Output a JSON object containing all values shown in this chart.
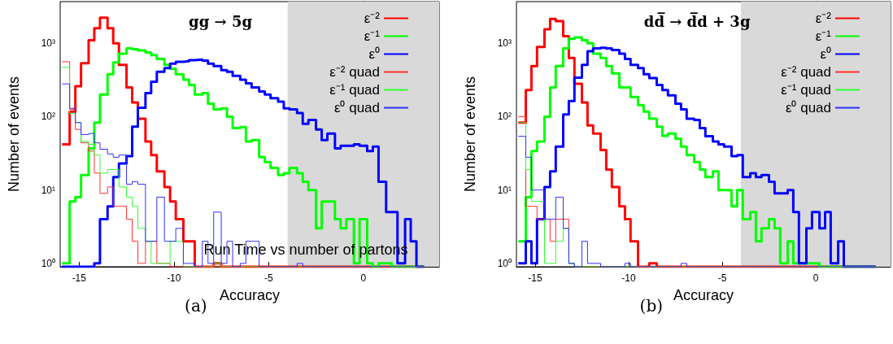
{
  "chart_data": [
    {
      "type": "histogram",
      "title": "gg → 5g",
      "xlabel": "Accuracy",
      "ylabel": "Number of events",
      "log": "y",
      "legend": "top right",
      "xlim": [
        -16,
        4
      ],
      "xticks": [
        -15,
        -10,
        -5,
        0
      ],
      "ylim": [
        0.9,
        3700
      ],
      "yticks": [
        {
          "value": 1,
          "label": "10⁰"
        },
        {
          "value": 10,
          "label": "10¹"
        },
        {
          "value": 100,
          "label": "10²"
        },
        {
          "value": 1000,
          "label": "10³"
        }
      ],
      "bands": [
        {
          "axis": "x",
          "from": -4,
          "to": 4,
          "color": "#d9d9d9"
        }
      ],
      "annotations": [
        "Run Time vs number of partons",
        "(a)"
      ],
      "bins": [
        -15.9,
        -15.5,
        -15.2,
        -14.9,
        -14.5,
        -14.2,
        -13.9,
        -13.5,
        -13.2,
        -12.9,
        -12.5,
        -12.2,
        -11.9,
        -11.5,
        -11.2,
        -10.9,
        -10.5,
        -10.2,
        -9.9,
        -9.5,
        -9.2,
        -8.9,
        -8.5,
        -8.2,
        -7.9,
        -7.5,
        -7.2,
        -6.9,
        -6.5,
        -6.2,
        -5.9,
        -5.5,
        -5.2,
        -4.9,
        -4.5,
        -4.2,
        -3.9,
        -3.5,
        -3.2,
        -2.9,
        -2.5,
        -2.2,
        -1.9,
        -1.5,
        -1.2,
        -0.9,
        -0.5,
        -0.2,
        0.2,
        0.5,
        0.8,
        1.2,
        1.5,
        1.8,
        2.2,
        2.5,
        2.8,
        3.2
      ],
      "series": [
        {
          "name": "ε⁻²",
          "color": "#ff0000",
          "values": [
            42,
            117,
            260,
            535,
            1100,
            1600,
            2240,
            1600,
            1000,
            510,
            250,
            156,
            94,
            46,
            30,
            18,
            11,
            7,
            4,
            2,
            2,
            null,
            null,
            null,
            1,
            null,
            null,
            null,
            null,
            null,
            null,
            null,
            null,
            null,
            null,
            null,
            null,
            null,
            null,
            null,
            null,
            null,
            null,
            null,
            null,
            null,
            null,
            null,
            null,
            null,
            null,
            null,
            null,
            null,
            null,
            null,
            null
          ]
        },
        {
          "name": "ε⁻¹",
          "color": "#00ff00",
          "values": [
            1,
            7,
            8,
            16,
            37,
            83,
            200,
            380,
            550,
            720,
            850,
            830,
            800,
            750,
            690,
            610,
            510,
            450,
            380,
            320,
            270,
            200,
            210,
            150,
            126,
            130,
            100,
            70,
            72,
            46,
            48,
            28,
            24,
            20,
            16,
            17,
            20,
            17,
            13,
            10,
            3,
            7,
            7,
            4,
            3,
            4,
            1,
            4,
            1,
            null,
            1,
            1,
            null,
            null,
            null,
            null,
            null
          ]
        },
        {
          "name": "ε⁰",
          "color": "#0000ff",
          "values": [
            null,
            null,
            null,
            null,
            null,
            1,
            4,
            6,
            15,
            23,
            29,
            73,
            132,
            210,
            300,
            410,
            460,
            530,
            560,
            570,
            590,
            600,
            580,
            530,
            490,
            430,
            410,
            360,
            320,
            285,
            250,
            220,
            200,
            178,
            160,
            130,
            126,
            112,
            80,
            90,
            67,
            48,
            59,
            37,
            40,
            40,
            42,
            40,
            34,
            39,
            13,
            5,
            5,
            1,
            4,
            2,
            null
          ]
        },
        {
          "name": "ε⁻² quad",
          "color": "#ff3030",
          "values": [
            560,
            126,
            67,
            44,
            34,
            17,
            9,
            11,
            6,
            6,
            4,
            2,
            1,
            2,
            2,
            1,
            1,
            null,
            null,
            null,
            null,
            null,
            null,
            null,
            null,
            null,
            null,
            null,
            null,
            null,
            null,
            null,
            null,
            null,
            null,
            null,
            null,
            null,
            null,
            null,
            null,
            null,
            null,
            null,
            null,
            null,
            null,
            null,
            null,
            null,
            null,
            null,
            null,
            null,
            null,
            null,
            null
          ]
        },
        {
          "name": "ε⁻¹ quad",
          "color": "#30ff30",
          "values": [
            470,
            111,
            83,
            46,
            42,
            30,
            17,
            19,
            19,
            11,
            8,
            6,
            3,
            2,
            1,
            1,
            1,
            2,
            2,
            null,
            null,
            null,
            null,
            null,
            1,
            null,
            null,
            null,
            null,
            null,
            null,
            null,
            null,
            null,
            null,
            null,
            null,
            null,
            null,
            null,
            null,
            null,
            null,
            null,
            null,
            null,
            null,
            null,
            null,
            null,
            null,
            null,
            null,
            null,
            null,
            null,
            null
          ]
        },
        {
          "name": "ε⁰ quad",
          "color": "#3030ff",
          "values": [
            280,
            130,
            83,
            57,
            59,
            44,
            36,
            31,
            28,
            30,
            12,
            13,
            12,
            2,
            2,
            8,
            2,
            2,
            3,
            1,
            1,
            null,
            2,
            1,
            5,
            1,
            2,
            null,
            1,
            2,
            2,
            null,
            null,
            null,
            null,
            null,
            null,
            1,
            null,
            null,
            null,
            null,
            null,
            null,
            null,
            null,
            null,
            null,
            null,
            null,
            null,
            null,
            null,
            null,
            null,
            null,
            null
          ]
        }
      ]
    },
    {
      "type": "histogram",
      "title": "dd̅ → d̅d + 3g",
      "xlabel": "Accuracy",
      "ylabel": "Number of events",
      "log": "y",
      "legend": "top right",
      "xlim": [
        -16,
        4
      ],
      "xticks": [
        -15,
        -10,
        -5,
        0
      ],
      "ylim": [
        0.9,
        3700
      ],
      "yticks": [
        {
          "value": 1,
          "label": "10⁰"
        },
        {
          "value": 10,
          "label": "10¹"
        },
        {
          "value": 100,
          "label": "10²"
        },
        {
          "value": 1000,
          "label": "10³"
        }
      ],
      "bands": [
        {
          "axis": "x",
          "from": -4,
          "to": 4,
          "color": "#d9d9d9"
        }
      ],
      "annotations": [
        "(b)"
      ],
      "bins": [
        -15.9,
        -15.5,
        -15.2,
        -14.9,
        -14.5,
        -14.2,
        -13.9,
        -13.5,
        -13.2,
        -12.9,
        -12.5,
        -12.2,
        -11.9,
        -11.5,
        -11.2,
        -10.9,
        -10.5,
        -10.2,
        -9.9,
        -9.5,
        -9.2,
        -8.9,
        -8.5,
        -8.2,
        -7.9,
        -7.5,
        -7.2,
        -6.9,
        -6.5,
        -6.2,
        -5.9,
        -5.5,
        -5.2,
        -4.9,
        -4.5,
        -4.2,
        -3.9,
        -3.5,
        -3.2,
        -2.9,
        -2.5,
        -2.2,
        -1.9,
        -1.5,
        -1.2,
        -0.9,
        -0.5,
        -0.2,
        0.2,
        0.5,
        0.8,
        1.2,
        1.5,
        1.8,
        2.2,
        2.5,
        2.8,
        3.2
      ],
      "series": [
        {
          "name": "ε⁻²",
          "color": "#ff0000",
          "values": [
            83,
            230,
            490,
            890,
            1550,
            2150,
            2000,
            1250,
            630,
            280,
            156,
            76,
            59,
            35,
            19,
            11,
            6,
            4,
            2,
            null,
            null,
            1,
            null,
            null,
            null,
            null,
            null,
            null,
            null,
            null,
            null,
            null,
            null,
            null,
            null,
            null,
            null,
            null,
            null,
            null,
            null,
            null,
            null,
            null,
            null,
            null,
            null,
            null,
            null,
            null,
            null,
            null,
            null,
            null,
            null,
            null,
            null
          ]
        },
        {
          "name": "ε⁻¹",
          "color": "#00ff00",
          "values": [
            2,
            8,
            34,
            46,
            100,
            250,
            490,
            850,
            1150,
            1200,
            1100,
            1000,
            720,
            630,
            490,
            390,
            250,
            250,
            185,
            144,
            117,
            94,
            73,
            55,
            59,
            50,
            39,
            30,
            24,
            19,
            15,
            18,
            10,
            10,
            6,
            10,
            4,
            5,
            2,
            3,
            4,
            3,
            1,
            2,
            1,
            1,
            1,
            1,
            null,
            null,
            null,
            null,
            null,
            null,
            null,
            null,
            null
          ]
        },
        {
          "name": "ε⁰",
          "color": "#0000ff",
          "values": [
            1,
            2,
            1,
            4,
            11,
            18,
            39,
            107,
            163,
            340,
            510,
            780,
            850,
            870,
            850,
            810,
            720,
            610,
            510,
            460,
            380,
            335,
            270,
            230,
            195,
            150,
            126,
            94,
            90,
            70,
            54,
            46,
            42,
            39,
            29,
            30,
            15,
            17,
            15,
            16,
            13,
            9,
            9,
            10,
            5,
            1,
            3,
            5,
            3,
            5,
            1,
            2,
            null,
            null,
            null,
            null,
            null
          ]
        },
        {
          "name": "ε⁻² quad",
          "color": "#ff3030",
          "values": [
            100,
            6,
            6,
            4,
            4,
            2,
            4,
            4,
            1,
            null,
            null,
            null,
            null,
            null,
            null,
            null,
            null,
            null,
            null,
            null,
            null,
            null,
            null,
            null,
            null,
            null,
            null,
            null,
            null,
            null,
            null,
            null,
            null,
            null,
            null,
            null,
            null,
            null,
            null,
            null,
            null,
            null,
            null,
            null,
            null,
            null,
            null,
            null,
            null,
            null,
            null,
            null,
            null,
            null,
            null,
            null,
            null
          ]
        },
        {
          "name": "ε⁻¹ quad",
          "color": "#30ff30",
          "values": [
            83,
            19,
            7,
            7,
            1,
            1,
            2,
            3,
            1,
            null,
            null,
            null,
            null,
            null,
            null,
            null,
            null,
            null,
            null,
            null,
            null,
            null,
            null,
            null,
            null,
            null,
            null,
            null,
            null,
            null,
            null,
            null,
            null,
            null,
            null,
            null,
            null,
            null,
            null,
            null,
            null,
            null,
            null,
            null,
            null,
            null,
            null,
            null,
            null,
            null,
            null,
            null,
            null,
            null,
            null,
            null,
            null
          ]
        },
        {
          "name": "ε⁰ quad",
          "color": "#3030ff",
          "values": [
            54,
            28,
            10,
            10,
            4,
            4,
            8,
            3,
            1,
            null,
            2,
            1,
            1,
            null,
            null,
            null,
            null,
            1,
            null,
            null,
            null,
            null,
            null,
            null,
            null,
            null,
            1,
            null,
            null,
            null,
            null,
            null,
            null,
            null,
            null,
            null,
            null,
            null,
            null,
            null,
            null,
            null,
            null,
            null,
            null,
            null,
            null,
            null,
            null,
            null,
            null,
            null,
            null,
            null,
            null,
            null,
            null
          ]
        }
      ]
    }
  ]
}
